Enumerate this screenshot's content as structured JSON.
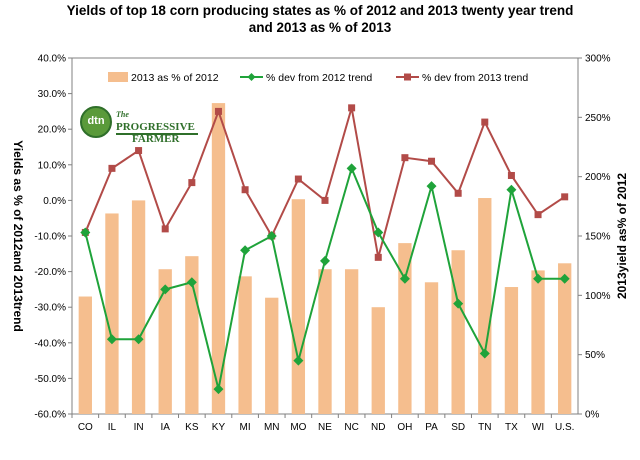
{
  "title_line1": "Yields of top 18 corn producing states as % of 2012 and 2013 twenty year trend",
  "title_line2": "and 2013 as % of 2013",
  "left_axis_label": "Yields as % of 2012and 2013trend",
  "right_axis_label": "2013yield as% of 2012",
  "logo": {
    "badge": "dtn",
    "line1": "The",
    "line2": "PROGRESSIVE",
    "line3": "FARMER"
  },
  "legend": {
    "bars": "2013 as % of 2012",
    "green": "% dev from 2012 trend",
    "red": "% dev from 2013 trend"
  },
  "colors": {
    "bars": "#F5BE8E",
    "green": "#1FA33A",
    "red": "#B24B48"
  },
  "chart_data": {
    "type": "bar",
    "categories": [
      "CO",
      "IL",
      "IN",
      "IA",
      "KS",
      "KY",
      "MI",
      "MN",
      "MO",
      "NE",
      "NC",
      "ND",
      "OH",
      "PA",
      "SD",
      "TN",
      "TX",
      "WI",
      "U.S."
    ],
    "y_left": {
      "min": -60,
      "max": 40,
      "step": 10,
      "ticks": [
        "-60.0%",
        "-50.0%",
        "-40.0%",
        "-30.0%",
        "-20.0%",
        "-10.0%",
        "0.0%",
        "10.0%",
        "20.0%",
        "30.0%",
        "40.0%"
      ]
    },
    "y_right": {
      "min": 0,
      "max": 300,
      "step": 50,
      "ticks": [
        "0%",
        "50%",
        "100%",
        "150%",
        "200%",
        "250%",
        "300%"
      ]
    },
    "series": [
      {
        "name": "2013 as % of 2012",
        "kind": "bar",
        "axis": "right",
        "values": [
          99,
          169,
          180,
          122,
          133,
          262,
          116,
          98,
          181,
          122,
          122,
          90,
          144,
          111,
          138,
          182,
          107,
          121,
          127
        ]
      },
      {
        "name": "% dev from 2012 trend",
        "kind": "line",
        "axis": "left",
        "values": [
          -9,
          -39,
          -39,
          -25,
          -23,
          -53,
          -14,
          -10,
          -45,
          -17,
          9,
          -9,
          -22,
          4,
          -29,
          -43,
          3,
          -22,
          -22
        ]
      },
      {
        "name": "% dev from 2013 trend",
        "kind": "line",
        "axis": "left",
        "values": [
          -9,
          9,
          14,
          -8,
          5,
          25,
          3,
          -10,
          6,
          0,
          26,
          -16,
          12,
          11,
          2,
          22,
          7,
          -4,
          1
        ]
      }
    ]
  }
}
